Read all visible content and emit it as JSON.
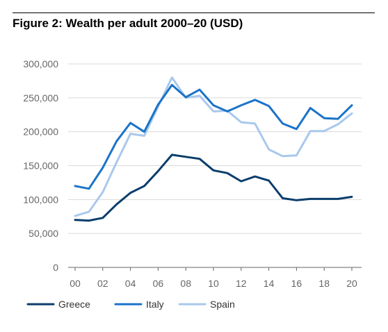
{
  "title": "Figure 2: Wealth per adult 2000–20 (USD)",
  "colors": {
    "greece": "#0a3d6b",
    "italy": "#1a73c9",
    "spain": "#a9c8ec",
    "grid": "#d9d9d9",
    "axis": "#666666"
  },
  "chart_data": {
    "type": "line",
    "title": "Figure 2: Wealth per adult 2000–20 (USD)",
    "xlabel": "",
    "ylabel": "",
    "x": [
      2000,
      2001,
      2002,
      2003,
      2004,
      2005,
      2006,
      2007,
      2008,
      2009,
      2010,
      2011,
      2012,
      2013,
      2014,
      2015,
      2016,
      2017,
      2018,
      2019,
      2020
    ],
    "x_tick_labels": [
      "00",
      "02",
      "04",
      "06",
      "08",
      "10",
      "12",
      "14",
      "16",
      "18",
      "20"
    ],
    "x_tick_values": [
      2000,
      2002,
      2004,
      2006,
      2008,
      2010,
      2012,
      2014,
      2016,
      2018,
      2020
    ],
    "ylim": [
      0,
      300000
    ],
    "y_tick_labels": [
      "0",
      "50,000",
      "100,000",
      "150,000",
      "200,000",
      "250,000",
      "300,000"
    ],
    "y_tick_values": [
      0,
      50000,
      100000,
      150000,
      200000,
      250000,
      300000
    ],
    "grid": true,
    "legend_position": "bottom",
    "series": [
      {
        "name": "Greece",
        "color": "#0a3d6b",
        "values": [
          70000,
          69000,
          73000,
          93000,
          110000,
          120000,
          142000,
          166000,
          163000,
          160000,
          143000,
          139000,
          127000,
          134000,
          128000,
          102000,
          99000,
          101000,
          101000,
          101000,
          104000
        ]
      },
      {
        "name": "Italy",
        "color": "#1a73c9",
        "values": [
          120000,
          116000,
          147000,
          186000,
          213000,
          200000,
          240000,
          269000,
          251000,
          262000,
          239000,
          230000,
          239000,
          247000,
          238000,
          212000,
          204000,
          235000,
          220000,
          219000,
          239000
        ]
      },
      {
        "name": "Spain",
        "color": "#a9c8ec",
        "values": [
          76000,
          82000,
          111000,
          155000,
          197000,
          194000,
          237000,
          280000,
          250000,
          253000,
          230000,
          231000,
          214000,
          212000,
          174000,
          164000,
          165000,
          201000,
          201000,
          211000,
          227000
        ]
      }
    ]
  }
}
